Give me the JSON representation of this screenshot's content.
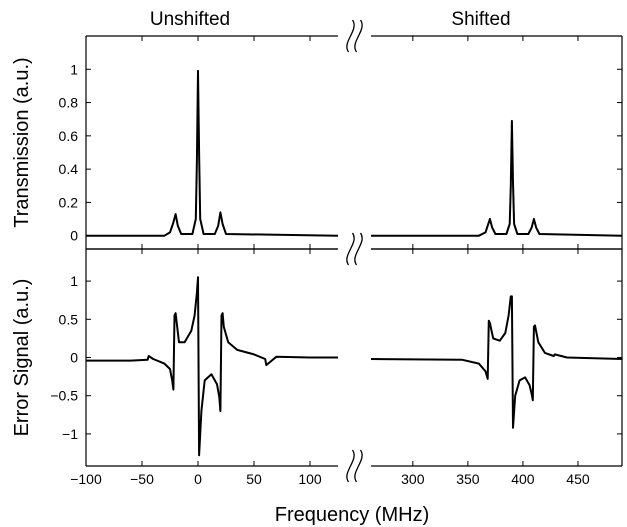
{
  "chart_data": {
    "type": "line",
    "panel_titles": {
      "left": "Unshifted",
      "right": "Shifted"
    },
    "xlabel": "Frequency (MHz)",
    "broken_x_axis": {
      "left_segment": [
        -100,
        125
      ],
      "right_segment": [
        262,
        490
      ],
      "left_ticks": [
        -100,
        -50,
        0,
        50,
        100
      ],
      "right_ticks": [
        300,
        350,
        400,
        450
      ],
      "tick_labels_left": [
        "−100",
        "−50",
        "0",
        "50",
        "100"
      ],
      "tick_labels_right": [
        "300",
        "350",
        "400",
        "450"
      ]
    },
    "grid": false,
    "legend": "none",
    "color": "#000000",
    "panels": [
      {
        "id": "transmission",
        "ylabel": "Transmission (a.u.)",
        "ylim": [
          -0.08,
          1.2
        ],
        "yticks": [
          0,
          0.2,
          0.4,
          0.6,
          0.8,
          1
        ],
        "ytick_labels": [
          "0",
          "0.2",
          "0.4",
          "0.6",
          "0.8",
          "1"
        ],
        "series": [
          {
            "segment": "left",
            "x": [
              -100,
              -30,
              -25,
              -22,
              -20,
              -18,
              -15,
              -5,
              -2,
              -1,
              0,
              1,
              2,
              5,
              15,
              18,
              20,
              22,
              25,
              125
            ],
            "y": [
              0,
              0,
              0.02,
              0.08,
              0.13,
              0.06,
              0.01,
              0.01,
              0.1,
              0.45,
              0.99,
              0.5,
              0.1,
              0.01,
              0.01,
              0.06,
              0.14,
              0.07,
              0.01,
              0
            ]
          },
          {
            "segment": "right",
            "x": [
              262,
              360,
              366,
              368,
              370,
              372,
              375,
              385,
              388,
              389,
              390,
              391,
              392,
              395,
              405,
              408,
              410,
              412,
              415,
              490
            ],
            "y": [
              0,
              0,
              0.02,
              0.06,
              0.1,
              0.05,
              0.01,
              0.01,
              0.07,
              0.3,
              0.69,
              0.32,
              0.07,
              0.01,
              0.01,
              0.05,
              0.1,
              0.05,
              0.01,
              0
            ]
          }
        ]
      },
      {
        "id": "error",
        "ylabel": "Error Signal (a.u.)",
        "ylim": [
          -1.42,
          1.42
        ],
        "yticks": [
          -1,
          -0.5,
          0,
          0.5,
          1
        ],
        "ytick_labels": [
          "−1",
          "−0.5",
          "0",
          "0.5",
          "1"
        ],
        "series": [
          {
            "segment": "left",
            "x": [
              -100,
              -60,
              -45,
              -44,
              -40,
              -30,
              -25,
              -23,
              -22,
              -21,
              -20,
              -17,
              -12,
              -6,
              -3,
              -1,
              0,
              1,
              3,
              6,
              12,
              17,
              19,
              20,
              21,
              22,
              23,
              27,
              35,
              50,
              60,
              61,
              70,
              100,
              125
            ],
            "y": [
              -0.04,
              -0.04,
              -0.03,
              0.02,
              -0.02,
              -0.08,
              -0.15,
              -0.3,
              -0.42,
              0.55,
              0.58,
              0.2,
              0.2,
              0.35,
              0.55,
              0.85,
              1.05,
              -1.28,
              -0.7,
              -0.3,
              -0.22,
              -0.35,
              -0.52,
              -0.7,
              0.55,
              0.58,
              0.4,
              0.2,
              0.1,
              0.04,
              -0.02,
              -0.1,
              0.01,
              0.0,
              0.0
            ]
          },
          {
            "segment": "right",
            "x": [
              262,
              345,
              360,
              366,
              368,
              369,
              370,
              373,
              379,
              384,
              387,
              389,
              390,
              391,
              393,
              397,
              402,
              406,
              408,
              409,
              410,
              411,
              414,
              420,
              428,
              429,
              440,
              490
            ],
            "y": [
              -0.02,
              -0.03,
              -0.08,
              -0.18,
              -0.28,
              0.48,
              0.45,
              0.25,
              0.22,
              0.32,
              0.55,
              0.8,
              0.8,
              -0.92,
              -0.5,
              -0.3,
              -0.26,
              -0.36,
              -0.48,
              -0.56,
              0.4,
              0.42,
              0.2,
              0.06,
              0.02,
              0.04,
              0.0,
              -0.02
            ]
          }
        ]
      }
    ]
  }
}
